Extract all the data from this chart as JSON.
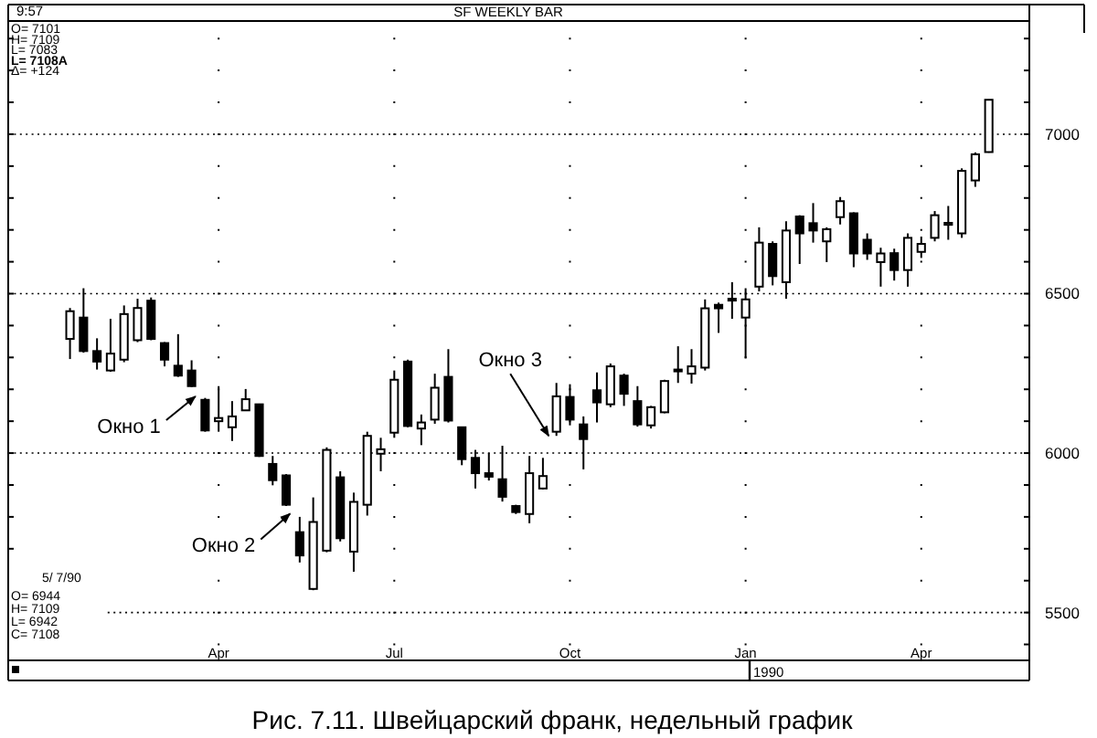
{
  "chart_data": {
    "type": "candlestick",
    "title": "SF WEEKLY BAR",
    "x": [
      "1989-01-16",
      "1989-01-23",
      "1989-01-30",
      "1989-02-06",
      "1989-02-13",
      "1989-02-20",
      "1989-02-27",
      "1989-03-06",
      "1989-03-13",
      "1989-03-20",
      "1989-03-27",
      "1989-04-03",
      "1989-04-10",
      "1989-04-17",
      "1989-04-24",
      "1989-05-01",
      "1989-05-08",
      "1989-05-15",
      "1989-05-22",
      "1989-05-29",
      "1989-06-05",
      "1989-06-12",
      "1989-06-19",
      "1989-06-26",
      "1989-07-03",
      "1989-07-10",
      "1989-07-17",
      "1989-07-24",
      "1989-07-31",
      "1989-08-07",
      "1989-08-14",
      "1989-08-21",
      "1989-08-28",
      "1989-09-04",
      "1989-09-11",
      "1989-09-18",
      "1989-09-25",
      "1989-10-02",
      "1989-10-09",
      "1989-10-16",
      "1989-10-23",
      "1989-10-30",
      "1989-11-06",
      "1989-11-13",
      "1989-11-20",
      "1989-11-27",
      "1989-12-04",
      "1989-12-11",
      "1989-12-18",
      "1989-12-25",
      "1990-01-01",
      "1990-01-08",
      "1990-01-15",
      "1990-01-22",
      "1990-01-29",
      "1990-02-05",
      "1990-02-12",
      "1990-02-19",
      "1990-02-26",
      "1990-03-05",
      "1990-03-12",
      "1990-03-19",
      "1990-03-26",
      "1990-04-02",
      "1990-04-09",
      "1990-04-16",
      "1990-04-23",
      "1990-04-30",
      "1990-05-07"
    ],
    "ohlc": [
      [
        6358,
        6455,
        6295,
        6445
      ],
      [
        6425,
        6517,
        6315,
        6320
      ],
      [
        6320,
        6360,
        6262,
        6287
      ],
      [
        6259,
        6421,
        6255,
        6312
      ],
      [
        6293,
        6463,
        6285,
        6436
      ],
      [
        6354,
        6484,
        6348,
        6455
      ],
      [
        6478,
        6488,
        6354,
        6358
      ],
      [
        6345,
        6348,
        6272,
        6293
      ],
      [
        6274,
        6373,
        6239,
        6243
      ],
      [
        6259,
        6291,
        6207,
        6210
      ],
      [
        6167,
        6173,
        6067,
        6071
      ],
      [
        6100,
        6210,
        6067,
        6110
      ],
      [
        6081,
        6163,
        6038,
        6115
      ],
      [
        6134,
        6201,
        6132,
        6169
      ],
      [
        6153,
        6155,
        5988,
        5991
      ],
      [
        5966,
        5991,
        5899,
        5915
      ],
      [
        5930,
        5934,
        5834,
        5838
      ],
      [
        5752,
        5800,
        5657,
        5679
      ],
      [
        5574,
        5861,
        5570,
        5784
      ],
      [
        5694,
        6018,
        5689,
        6010
      ],
      [
        5924,
        5943,
        5723,
        5733
      ],
      [
        5691,
        5876,
        5628,
        5847
      ],
      [
        5838,
        6067,
        5804,
        6054
      ],
      [
        5998,
        6048,
        5943,
        6012
      ],
      [
        6064,
        6259,
        6048,
        6230
      ],
      [
        6287,
        6293,
        6081,
        6085
      ],
      [
        6077,
        6121,
        6025,
        6096
      ],
      [
        6105,
        6249,
        6092,
        6205
      ],
      [
        6239,
        6326,
        6096,
        6102
      ],
      [
        6081,
        6083,
        5962,
        5981
      ],
      [
        5985,
        6010,
        5889,
        5937
      ],
      [
        5937,
        6000,
        5914,
        5926
      ],
      [
        5918,
        6023,
        5848,
        5863
      ],
      [
        5834,
        5838,
        5809,
        5815
      ],
      [
        5809,
        5991,
        5780,
        5937
      ],
      [
        5889,
        5985,
        5886,
        5928
      ],
      [
        6067,
        6220,
        6054,
        6178
      ],
      [
        6176,
        6216,
        6087,
        6105
      ],
      [
        6090,
        6115,
        5949,
        6044
      ],
      [
        6197,
        6253,
        6096,
        6159
      ],
      [
        6153,
        6281,
        6144,
        6272
      ],
      [
        6243,
        6249,
        6148,
        6186
      ],
      [
        6163,
        6210,
        6083,
        6090
      ],
      [
        6087,
        6148,
        6077,
        6144
      ],
      [
        6128,
        6230,
        6125,
        6226
      ],
      [
        6262,
        6335,
        6220,
        6258
      ],
      [
        6249,
        6326,
        6218,
        6272
      ],
      [
        6268,
        6482,
        6259,
        6454
      ],
      [
        6465,
        6472,
        6377,
        6454
      ],
      [
        6484,
        6536,
        6421,
        6480
      ],
      [
        6425,
        6517,
        6297,
        6482
      ],
      [
        6522,
        6708,
        6507,
        6660
      ],
      [
        6656,
        6664,
        6526,
        6555
      ],
      [
        6536,
        6727,
        6484,
        6698
      ],
      [
        6742,
        6746,
        6593,
        6689
      ],
      [
        6721,
        6784,
        6660,
        6698
      ],
      [
        6664,
        6708,
        6599,
        6702
      ],
      [
        6740,
        6803,
        6717,
        6790
      ],
      [
        6752,
        6755,
        6583,
        6626
      ],
      [
        6669,
        6689,
        6606,
        6626
      ],
      [
        6599,
        6644,
        6522,
        6626
      ],
      [
        6627,
        6641,
        6541,
        6574
      ],
      [
        6574,
        6689,
        6522,
        6675
      ],
      [
        6631,
        6679,
        6612,
        6656
      ],
      [
        6675,
        6759,
        6664,
        6746
      ],
      [
        6716,
        6775,
        6669,
        6722
      ],
      [
        6689,
        6893,
        6675,
        6885
      ],
      [
        6855,
        6943,
        6835,
        6937
      ],
      [
        6944,
        7109,
        6942,
        7108
      ]
    ],
    "xlim": [
      "1988-12-15",
      "1990-05-28"
    ],
    "xticks": [
      {
        "value": "1989-04-03",
        "label": "Apr"
      },
      {
        "value": "1989-07-03",
        "label": "Jul"
      },
      {
        "value": "1989-10-02",
        "label": "Oct"
      },
      {
        "value": "1990-01-01",
        "label": "Jan"
      },
      {
        "value": "1990-04-02",
        "label": "Apr"
      }
    ],
    "ylim": [
      5350,
      7355
    ],
    "yticks": [
      {
        "value": 5400,
        "label": null
      },
      5500,
      {
        "value": 5600,
        "label": null
      },
      {
        "value": 5700,
        "label": null
      },
      {
        "value": 5800,
        "label": null
      },
      {
        "value": 5900,
        "label": null
      },
      6000,
      {
        "value": 6100,
        "label": null
      },
      {
        "value": 6200,
        "label": null
      },
      {
        "value": 6300,
        "label": null
      },
      {
        "value": 6400,
        "label": null
      },
      6500,
      {
        "value": 6600,
        "label": null
      },
      {
        "value": 6700,
        "label": null
      },
      {
        "value": 6800,
        "label": null
      },
      {
        "value": 6900,
        "label": null
      },
      7000,
      {
        "value": 7100,
        "label": null
      },
      {
        "value": 7200,
        "label": null
      },
      {
        "value": 7300,
        "label": null
      }
    ],
    "grid": true,
    "tick_labels": "xy",
    "annotations": [
      "9:57",
      "O= 7101",
      "H= 7109",
      "L= 7083",
      "L= 7108A",
      "Δ= +124",
      "5/ 7/90",
      "O= 6944",
      "H= 7109",
      "L= 6942",
      "C= 7108",
      "1990",
      "Рис. 7.11. Швейцарский франк, недельный график",
      {
        "text": "Окно 1",
        "x": "1989-03-22",
        "y": 6178
      },
      {
        "text": "Окно 2",
        "x": "1989-05-10",
        "y": 5810
      },
      {
        "text": "Окно 3",
        "x": "1989-09-21",
        "y": 6054
      }
    ]
  }
}
